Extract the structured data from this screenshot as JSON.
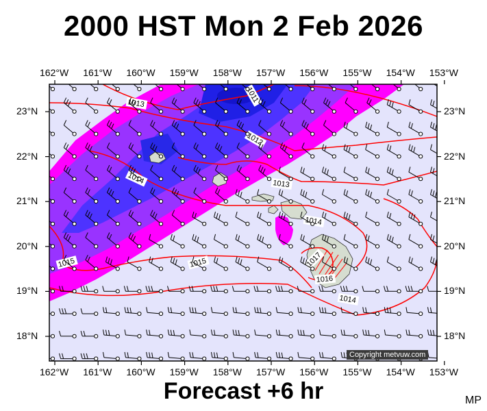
{
  "title": "2000 HST Mon 2 Feb 2026",
  "footer": "Forecast +6 hr",
  "corner_label": "MP",
  "copyright": "Copyright metvuw.com",
  "axes": {
    "lon_labels": [
      "162°W",
      "161°W",
      "160°W",
      "159°W",
      "158°W",
      "157°W",
      "156°W",
      "155°W",
      "154°W",
      "153°W"
    ],
    "lat_labels": [
      "23°N",
      "22°N",
      "21°N",
      "20°N",
      "19°N",
      "18°N"
    ]
  },
  "isobars": {
    "labels": [
      "1011",
      "1012",
      "1013",
      "1013",
      "1014",
      "1014",
      "1014",
      "1015",
      "1015",
      "1016",
      "1017"
    ]
  },
  "colors": {
    "background": "#e4e4fc",
    "magenta": "#ff00ff",
    "purple": "#9933ff",
    "blue": "#3333ee",
    "deep_blue": "#1a1ae0",
    "isobar": "#ff0000",
    "island_fill": "#d6ddd0"
  }
}
